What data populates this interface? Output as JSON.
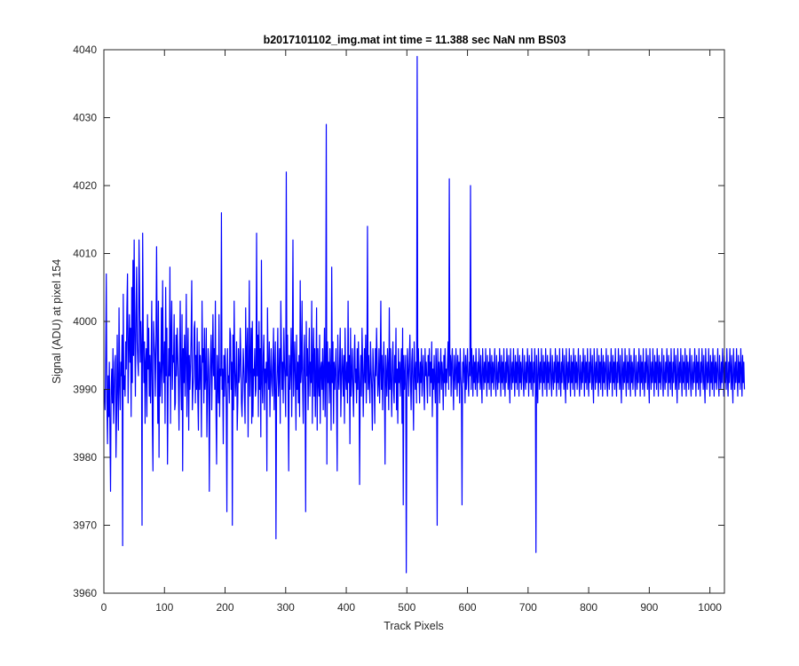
{
  "chart_data": {
    "type": "line",
    "title": "b2017101102_img.mat int time = 11.388 sec  NaN nm BS03",
    "xlabel": "Track Pixels",
    "ylabel": "Signal (ADU) at pixel 154",
    "xlim": [
      0,
      1024
    ],
    "ylim": [
      3960,
      4040
    ],
    "xticks": [
      0,
      100,
      200,
      300,
      400,
      500,
      600,
      700,
      800,
      900,
      1000
    ],
    "yticks": [
      3960,
      3970,
      3980,
      3990,
      4000,
      4010,
      4020,
      4030,
      4040
    ],
    "grid": false,
    "series_color": "#0000ff",
    "series": [
      {
        "x_start": 1,
        "x_step": 1,
        "values": [
          3990,
          3987,
          3995,
          4007,
          3988,
          3982,
          3992,
          3986,
          3994,
          3984,
          3975,
          3990,
          3993,
          3988,
          3996,
          3985,
          3989,
          3994,
          3995,
          3980,
          3986,
          3998,
          3990,
          3984,
          4002,
          3991,
          3987,
          3994,
          3992,
          3998,
          3967,
          4004,
          3990,
          3992,
          3989,
          3997,
          3993,
          4002,
          4007,
          3988,
          3996,
          4001,
          3994,
          3999,
          3986,
          4005,
          3991,
          4009,
          3995,
          4012,
          3998,
          3989,
          4001,
          4008,
          3997,
          3994,
          3992,
          4012,
          4005,
          3994,
          4000,
          3996,
          3970,
          4013,
          3999,
          3991,
          3997,
          3985,
          3994,
          3996,
          3986,
          4001,
          3993,
          3999,
          3989,
          3995,
          3988,
          3994,
          4003,
          3985,
          3978,
          4000,
          3997,
          3995,
          3989,
          3998,
          4011,
          3996,
          3985,
          4003,
          3980,
          3994,
          3989,
          3993,
          4002,
          3988,
          4006,
          3994,
          3991,
          3997,
          3985,
          4005,
          3992,
          3999,
          3979,
          3990,
          3996,
          3992,
          4008,
          3985,
          3998,
          4003,
          3990,
          3995,
          3994,
          4001,
          3987,
          3988,
          3998,
          3992,
          3999,
          3995,
          3991,
          3984,
          3994,
          4003,
          3992,
          3987,
          4001,
          3978,
          3996,
          3991,
          3998,
          3989,
          3995,
          4004,
          3986,
          3993,
          3999,
          3984,
          3995,
          3990,
          3993,
          3998,
          4006,
          3987,
          3990,
          3992,
          3999,
          4000,
          3988,
          3995,
          3990,
          3999,
          3989,
          3984,
          3997,
          3990,
          3995,
          3992,
          3983,
          4003,
          3994,
          3996,
          3988,
          3999,
          3990,
          3992,
          3999,
          3983,
          3990,
          3996,
          3993,
          3975,
          3990,
          3995,
          3998,
          3987,
          3994,
          4001,
          3992,
          3996,
          3990,
          4003,
          3987,
          3979,
          3995,
          3991,
          3988,
          4001,
          3986,
          3993,
          3992,
          4016,
          3990,
          3993,
          3982,
          3995,
          3989,
          3996,
          3993,
          3987,
          3972,
          3996,
          3991,
          3992,
          3988,
          3999,
          3998,
          3990,
          3994,
          3970,
          3998,
          3987,
          4003,
          3993,
          3989,
          3992,
          3997,
          3984,
          3988,
          3996,
          3991,
          3992,
          3999,
          3995,
          3988,
          3986,
          3991,
          3996,
          3993,
          3989,
          3985,
          4002,
          3991,
          3995,
          3999,
          3983,
          3993,
          4006,
          3989,
          3994,
          3999,
          3985,
          4000,
          3986,
          3993,
          3992,
          3996,
          3989,
          3990,
          4013,
          3992,
          3998,
          3986,
          4000,
          3990,
          3996,
          3983,
          4009,
          3991,
          3988,
          3995,
          3998,
          3987,
          3993,
          3991,
          3994,
          3978,
          4002,
          3993,
          3990,
          3997,
          3986,
          3992,
          3996,
          3991,
          3989,
          3994,
          3999,
          3987,
          3993,
          3997,
          3968,
          3990,
          3993,
          3999,
          3989,
          3992,
          3996,
          3985,
          4003,
          3996,
          3990,
          3994,
          3988,
          3999,
          3994,
          3991,
          3986,
          4022,
          3992,
          3998,
          3989,
          3978,
          3995,
          3990,
          3993,
          3999,
          3986,
          3995,
          4012,
          3989,
          3993,
          3997,
          3991,
          3984,
          3998,
          3990,
          3994,
          3988,
          3995,
          3986,
          4006,
          3991,
          3993,
          4003,
          3990,
          3985,
          3994,
          3998,
          3990,
          3972,
          4000,
          3992,
          3996,
          3987,
          3993,
          3999,
          3989,
          3994,
          3991,
          4003,
          3985,
          3994,
          3999,
          3989,
          3996,
          3986,
          3992,
          4002,
          3984,
          3996,
          3991,
          3989,
          3998,
          3985,
          3993,
          3994,
          3990,
          3996,
          3987,
          3993,
          3999,
          3986,
          3992,
          4029,
          3979,
          3997,
          3991,
          3994,
          3988,
          3996,
          3992,
          3984,
          4008,
          3991,
          3997,
          3985,
          3994,
          3990,
          3993,
          3996,
          3988,
          3978,
          3998,
          3992,
          3990,
          3994,
          3999,
          3986,
          3991,
          3996,
          3993,
          3989,
          3995,
          3985,
          3999,
          3992,
          3990,
          3994,
          3988,
          4003,
          3991,
          3995,
          3982,
          3999,
          3989,
          3992,
          3996,
          3990,
          3986,
          3994,
          3998,
          3991,
          3993,
          3988,
          3996,
          3990,
          3997,
          3992,
          3976,
          3991,
          3995,
          3989,
          3999,
          3994,
          3986,
          3992,
          3996,
          3991,
          3998,
          3988,
          3993,
          4014,
          3990,
          3995,
          3991,
          3988,
          3997,
          3993,
          3990,
          3984,
          3996,
          3993,
          3991,
          3985,
          3996,
          3992,
          3999,
          3994,
          3989,
          3991,
          3996,
          3988,
          3993,
          4003,
          3990,
          3995,
          3987,
          3993,
          3997,
          3991,
          3979,
          3995,
          3992,
          3989,
          3996,
          3993,
          3987,
          4002,
          3990,
          3996,
          3991,
          3986,
          3994,
          3997,
          3990,
          3988,
          3995,
          3991,
          3999,
          3987,
          3993,
          3985,
          3996,
          3991,
          3994,
          3989,
          3993,
          3996,
          3985,
          3999,
          3973,
          3995,
          3990,
          3992,
          3995,
          3963,
          3990,
          3996,
          3993,
          3989,
          3994,
          3998,
          3991,
          3987,
          3994,
          3996,
          3990,
          3984,
          3997,
          3993,
          3990,
          3994,
          3988,
          4039,
          3991,
          3996,
          3992,
          3988,
          3994,
          3991,
          3996,
          3989,
          3993,
          3995,
          3990,
          3987,
          3996,
          3992,
          3994,
          3991,
          3988,
          3995,
          3992,
          3996,
          3989,
          3994,
          3991,
          3997,
          3986,
          3993,
          3990,
          3995,
          3991,
          3988,
          3996,
          3993,
          3970,
          3996,
          3991,
          3994,
          3988,
          3993,
          3996,
          3990,
          3994,
          3992,
          3987,
          3995,
          3991,
          3996,
          3989,
          3993,
          3991,
          3994,
          3997,
          3990,
          4021,
          3992,
          3995,
          3989,
          3994,
          3996,
          3991,
          3987,
          3995,
          3992,
          3990,
          3996,
          3993,
          3989,
          3995,
          3991,
          3994,
          3988,
          3996,
          3992,
          3990,
          3973,
          3994,
          3991,
          3996,
          3993,
          3988,
          3995,
          3990,
          3993,
          3996,
          3991,
          3989,
          3994,
          3992,
          4020,
          3990,
          3996,
          3993,
          3989,
          3995,
          3991,
          3994,
          3990,
          3996,
          3992,
          3989,
          3994,
          3991,
          3996,
          3993,
          3990,
          3995,
          3991,
          3988,
          3996,
          3993,
          3990,
          3994,
          3991,
          3996,
          3992,
          3989,
          3995,
          3991,
          3994,
          3990,
          3996,
          3993,
          3989,
          3995,
          3991,
          3994,
          3990,
          3993,
          3996,
          3991,
          3989,
          3995,
          3992,
          3990,
          3994,
          3991,
          3996,
          3993,
          3989,
          3995,
          3991,
          3994,
          3990,
          3996,
          3992,
          3989,
          3994,
          3991,
          3996,
          3993,
          3990,
          3995,
          3991,
          3988,
          3996,
          3993,
          3990,
          3994,
          3991,
          3996,
          3992,
          3989,
          3995,
          3991,
          3994,
          3990,
          3996,
          3993,
          3989,
          3995,
          3991,
          3994,
          3990,
          3993,
          3996,
          3991,
          3989,
          3995,
          3992,
          3990,
          3994,
          3991,
          3996,
          3993,
          3989,
          3995,
          3991,
          3994,
          3990,
          3996,
          3992,
          3989,
          3994,
          3991,
          3996,
          3993,
          3966,
          3995,
          3991,
          3988,
          3996,
          3993,
          3990,
          3994,
          3991,
          3996,
          3992,
          3989,
          3995,
          3991,
          3994,
          3990,
          3996,
          3993,
          3989,
          3995,
          3991,
          3994,
          3990,
          3993,
          3996,
          3991,
          3989,
          3995,
          3992,
          3990,
          3994,
          3991,
          3996,
          3993,
          3989,
          3995,
          3991,
          3994,
          3990,
          3996,
          3992,
          3989,
          3994,
          3991,
          3996,
          3993,
          3990,
          3995,
          3991,
          3988,
          3996,
          3993,
          3990,
          3994,
          3991,
          3996,
          3992,
          3989,
          3995,
          3991,
          3994,
          3990,
          3996,
          3993,
          3989,
          3995,
          3991,
          3994,
          3990,
          3993,
          3996,
          3991,
          3989,
          3995,
          3992,
          3990,
          3994,
          3991,
          3996,
          3993,
          3989,
          3995,
          3991,
          3994,
          3990,
          3996,
          3992,
          3989,
          3994,
          3991,
          3996,
          3993,
          3990,
          3995,
          3991,
          3988,
          3996,
          3993,
          3990,
          3994,
          3991,
          3996,
          3992,
          3989,
          3995,
          3991,
          3994,
          3990,
          3996,
          3993,
          3989,
          3995,
          3991,
          3994,
          3990,
          3993,
          3996,
          3991,
          3989,
          3995,
          3992,
          3990,
          3994,
          3991,
          3996,
          3993,
          3989,
          3995,
          3991,
          3994,
          3990,
          3996,
          3992,
          3989,
          3994,
          3991,
          3996,
          3993,
          3990,
          3995,
          3991,
          3988,
          3996,
          3993,
          3990,
          3994,
          3991,
          3996,
          3992,
          3989,
          3995,
          3991,
          3994,
          3990,
          3996,
          3993,
          3989,
          3995,
          3991,
          3994,
          3990,
          3993,
          3996,
          3991,
          3989,
          3995,
          3992,
          3990,
          3994,
          3991,
          3996,
          3993,
          3989,
          3995,
          3991,
          3994,
          3990,
          3996,
          3992,
          3989,
          3994,
          3991,
          3996,
          3993,
          3990,
          3995,
          3991,
          3988,
          3996,
          3993,
          3990,
          3994,
          3991,
          3996,
          3992,
          3989,
          3995,
          3991,
          3994,
          3990,
          3996,
          3993,
          3989,
          3995,
          3991,
          3994,
          3990,
          3993,
          3996,
          3991,
          3989,
          3995,
          3992,
          3990,
          3994,
          3991,
          3996,
          3993,
          3989,
          3995,
          3991,
          3994,
          3990,
          3996,
          3992,
          3989,
          3994,
          3991,
          3996,
          3993,
          3990,
          3995,
          3991,
          3988,
          3996,
          3993,
          3990,
          3994,
          3991,
          3996,
          3992,
          3989,
          3995,
          3991,
          3994,
          3990,
          3996,
          3993,
          3989,
          3995,
          3991,
          3994,
          3990,
          3993,
          3996,
          3991,
          3989,
          3995,
          3992,
          3990,
          3994,
          3991,
          3996,
          3993,
          3989,
          3995,
          3991,
          3994,
          3990,
          3996,
          3992,
          3989,
          3994,
          3991,
          3996,
          3993,
          3990,
          3995,
          3991,
          3988,
          3996,
          3993,
          3990,
          3994,
          3991,
          3996,
          3992,
          3989,
          3995,
          3991,
          3994,
          3990,
          3996,
          3993,
          3989,
          3995,
          3991,
          3994,
          3990,
          3993,
          3996,
          3991,
          3989,
          3995,
          3992,
          3990,
          3994,
          3991,
          3996,
          3993,
          3989,
          3995,
          3991,
          3994,
          3990,
          3996,
          3992,
          3989,
          3994,
          3991,
          3996,
          3993,
          3990,
          3995,
          3991,
          3988,
          3996,
          3993,
          3990,
          3994,
          3991,
          3996,
          3992,
          3989,
          3995,
          3991,
          3994,
          3990,
          3996,
          3993,
          3989,
          3995,
          3991,
          3994,
          3990
        ]
      }
    ]
  }
}
